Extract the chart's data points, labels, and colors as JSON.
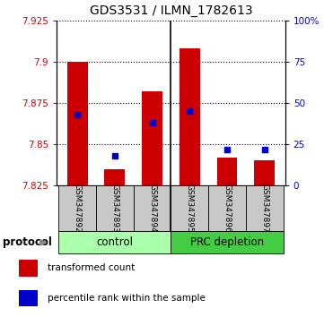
{
  "title": "GDS3531 / ILMN_1782613",
  "samples": [
    "GSM347892",
    "GSM347893",
    "GSM347894",
    "GSM347895",
    "GSM347896",
    "GSM347897"
  ],
  "baseline": 7.825,
  "red_bar_tops": [
    7.9,
    7.835,
    7.882,
    7.908,
    7.842,
    7.84
  ],
  "blue_square_y": [
    7.868,
    7.843,
    7.863,
    7.87,
    7.847,
    7.847
  ],
  "ylim_left": [
    7.825,
    7.925
  ],
  "ylim_right": [
    0,
    100
  ],
  "yticks_left": [
    7.825,
    7.85,
    7.875,
    7.9,
    7.925
  ],
  "ytick_labels_left": [
    "7.825",
    "7.85",
    "7.875",
    "7.9",
    "7.925"
  ],
  "yticks_right": [
    0,
    25,
    50,
    75,
    100
  ],
  "ytick_labels_right": [
    "0",
    "25",
    "50",
    "75",
    "100%"
  ],
  "group_colors": [
    "#aaffaa",
    "#44cc44"
  ],
  "group_label_colors": [
    "#aaffaa",
    "#44cc44"
  ],
  "groups": [
    {
      "label": "control",
      "indices": [
        0,
        1,
        2
      ]
    },
    {
      "label": "PRC depletion",
      "indices": [
        3,
        4,
        5
      ]
    }
  ],
  "bar_color": "#CC0000",
  "square_color": "#0000CC",
  "bar_width": 0.55,
  "group_label": "protocol",
  "legend_items": [
    {
      "color": "#CC0000",
      "label": "transformed count"
    },
    {
      "color": "#0000CC",
      "label": "percentile rank within the sample"
    }
  ],
  "axis_color_left": "#CC0000",
  "axis_color_right": "#0000CC",
  "sample_bg": "#C8C8C8",
  "separator_color": "#000000"
}
